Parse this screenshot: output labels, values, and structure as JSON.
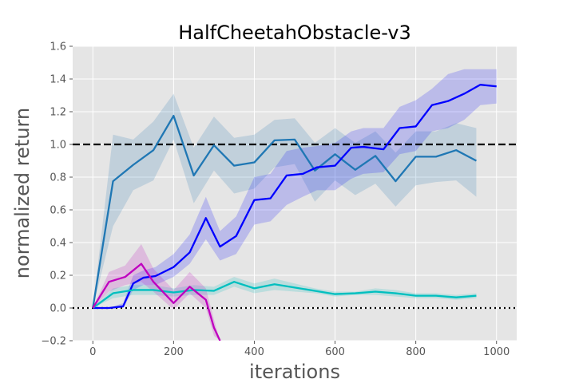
{
  "chart_data": {
    "type": "line",
    "title": "HalfCheetahObstacle-v3",
    "xlabel": "iterations",
    "ylabel": "normalized return",
    "xlim": [
      -50,
      1050
    ],
    "ylim": [
      -0.2,
      1.6
    ],
    "xticks": [
      0,
      200,
      400,
      600,
      800,
      1000
    ],
    "yticks": [
      -0.2,
      0.0,
      0.2,
      0.4,
      0.6,
      0.8,
      1.0,
      1.2,
      1.4,
      1.6
    ],
    "xtick_labels": [
      "0",
      "200",
      "400",
      "600",
      "800",
      "1000"
    ],
    "ytick_labels": [
      "−0.2",
      "0.0",
      "0.2",
      "0.4",
      "0.6",
      "0.8",
      "1.0",
      "1.2",
      "1.4",
      "1.6"
    ],
    "grid": true,
    "reference_lines": [
      {
        "y": 1.0,
        "style": "dashed",
        "color": "#000000"
      },
      {
        "y": 0.0,
        "style": "dotted",
        "color": "#000000"
      }
    ],
    "series": [
      {
        "color": "#1f77b4",
        "x": [
          0,
          50,
          100,
          150,
          200,
          250,
          300,
          350,
          400,
          450,
          500,
          550,
          600,
          650,
          700,
          750,
          800,
          850,
          900,
          950
        ],
        "y": [
          0.0,
          0.775,
          0.875,
          0.965,
          1.175,
          0.81,
          0.995,
          0.87,
          0.89,
          1.025,
          1.03,
          0.84,
          0.94,
          0.845,
          0.93,
          0.775,
          0.925,
          0.925,
          0.965,
          0.9
        ],
        "lower": [
          0.0,
          0.5,
          0.72,
          0.78,
          1.03,
          0.64,
          0.84,
          0.7,
          0.73,
          0.86,
          0.88,
          0.65,
          0.78,
          0.69,
          0.76,
          0.62,
          0.75,
          0.77,
          0.78,
          0.68
        ],
        "upper": [
          0.0,
          1.06,
          1.03,
          1.14,
          1.31,
          0.98,
          1.17,
          1.04,
          1.06,
          1.15,
          1.16,
          1.01,
          1.1,
          1.01,
          1.08,
          0.95,
          1.08,
          1.08,
          1.13,
          1.1
        ]
      },
      {
        "color": "#0000ff",
        "x": [
          0,
          40,
          75,
          100,
          125,
          155,
          200,
          240,
          280,
          315,
          355,
          400,
          440,
          480,
          520,
          555,
          600,
          640,
          670,
          720,
          760,
          800,
          840,
          880,
          920,
          960,
          1000
        ],
        "y": [
          0.0,
          0.0,
          0.01,
          0.15,
          0.185,
          0.195,
          0.25,
          0.34,
          0.55,
          0.375,
          0.44,
          0.66,
          0.67,
          0.81,
          0.82,
          0.86,
          0.87,
          0.98,
          0.985,
          0.97,
          1.1,
          1.11,
          1.24,
          1.265,
          1.31,
          1.365,
          1.355
        ],
        "lower": [
          0.0,
          0.0,
          0.0,
          0.11,
          0.14,
          0.14,
          0.19,
          0.27,
          0.42,
          0.29,
          0.33,
          0.51,
          0.53,
          0.63,
          0.68,
          0.72,
          0.72,
          0.79,
          0.82,
          0.83,
          0.94,
          0.96,
          1.08,
          1.1,
          1.15,
          1.24,
          1.25
        ],
        "upper": [
          0.0,
          0.0,
          0.03,
          0.2,
          0.23,
          0.25,
          0.33,
          0.45,
          0.68,
          0.47,
          0.56,
          0.8,
          0.82,
          0.96,
          0.98,
          0.99,
          1.01,
          1.08,
          1.1,
          1.1,
          1.23,
          1.27,
          1.34,
          1.43,
          1.46,
          1.46,
          1.46
        ]
      },
      {
        "color": "#00bfbf",
        "x": [
          0,
          50,
          100,
          150,
          200,
          250,
          300,
          350,
          400,
          450,
          500,
          550,
          600,
          650,
          700,
          750,
          800,
          850,
          900,
          950
        ],
        "y": [
          0.0,
          0.09,
          0.11,
          0.11,
          0.095,
          0.11,
          0.105,
          0.16,
          0.12,
          0.145,
          0.125,
          0.105,
          0.085,
          0.09,
          0.1,
          0.09,
          0.075,
          0.075,
          0.065,
          0.075
        ],
        "lower": [
          0.0,
          0.06,
          0.08,
          0.08,
          0.07,
          0.08,
          0.08,
          0.13,
          0.09,
          0.11,
          0.1,
          0.09,
          0.07,
          0.08,
          0.08,
          0.07,
          0.06,
          0.06,
          0.05,
          0.06
        ],
        "upper": [
          0.0,
          0.12,
          0.14,
          0.14,
          0.12,
          0.14,
          0.13,
          0.19,
          0.15,
          0.18,
          0.15,
          0.12,
          0.1,
          0.1,
          0.12,
          0.11,
          0.09,
          0.09,
          0.08,
          0.09
        ]
      },
      {
        "color": "#bf00bf",
        "x": [
          0,
          40,
          80,
          120,
          150,
          200,
          240,
          280,
          300,
          315
        ],
        "y": [
          0.0,
          0.16,
          0.19,
          0.27,
          0.16,
          0.03,
          0.13,
          0.05,
          -0.12,
          -0.2
        ],
        "lower": [
          0.0,
          0.1,
          0.14,
          0.16,
          0.1,
          -0.01,
          0.09,
          0.0,
          -0.17,
          -0.2
        ],
        "upper": [
          0.0,
          0.22,
          0.26,
          0.39,
          0.24,
          0.11,
          0.22,
          0.12,
          -0.07,
          -0.2
        ]
      }
    ]
  }
}
